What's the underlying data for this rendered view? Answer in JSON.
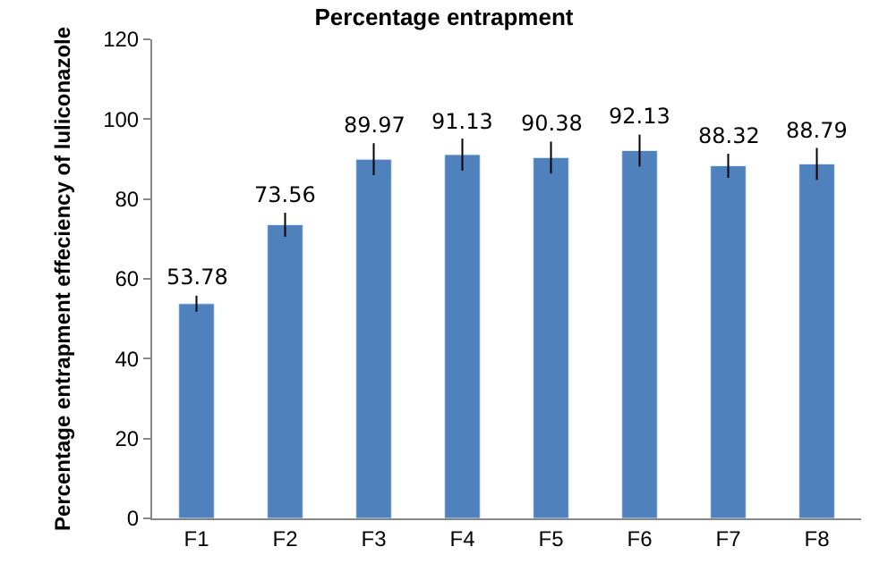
{
  "chart_data": {
    "type": "bar",
    "title": "Percentage entrapment",
    "ylabel": "Percentage entrapment effeciency of luliconazole",
    "categories": [
      "F1",
      "F2",
      "F3",
      "F4",
      "F5",
      "F6",
      "F7",
      "F8"
    ],
    "values": [
      53.78,
      73.56,
      89.97,
      91.13,
      90.38,
      92.13,
      88.32,
      88.79
    ],
    "errors": [
      2,
      3,
      4,
      4,
      4,
      4,
      3,
      4
    ],
    "color": "#4f81bd",
    "ylim": [
      0,
      120
    ],
    "yticks": [
      0,
      20,
      40,
      60,
      80,
      100,
      120
    ],
    "data_labels": true,
    "legend": false
  }
}
